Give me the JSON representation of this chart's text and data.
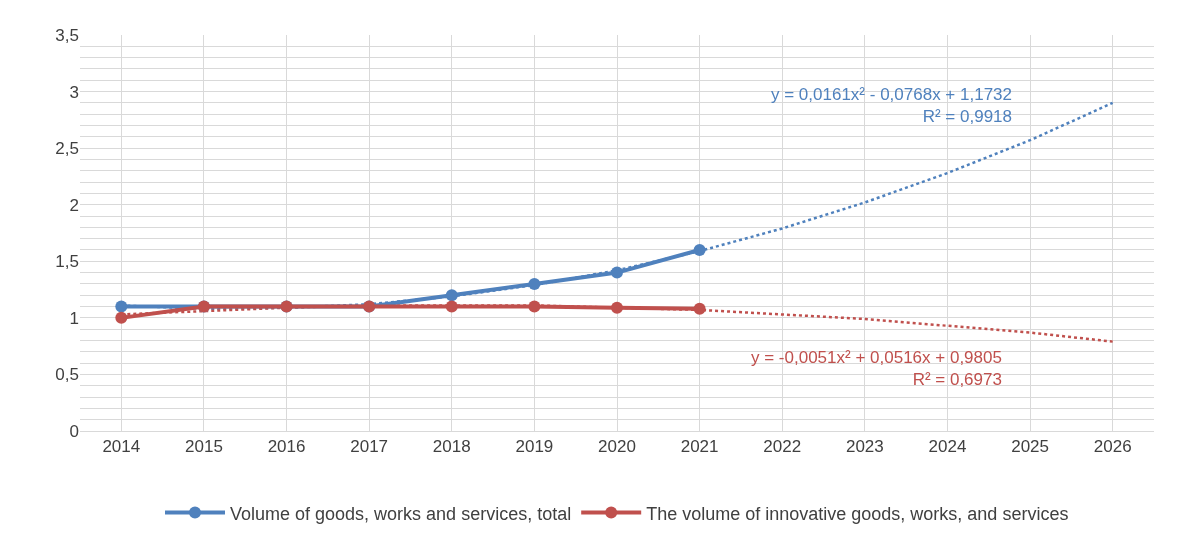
{
  "chart_data": {
    "type": "line",
    "categories": [
      "2014",
      "2015",
      "2016",
      "2017",
      "2018",
      "2019",
      "2020",
      "2021",
      "2022",
      "2023",
      "2024",
      "2025",
      "2026"
    ],
    "series": [
      {
        "name": "Volume of goods, works and services, total",
        "color": "#4f81bd",
        "marker": "circle",
        "line_style": "solid",
        "values": [
          1.1,
          1.1,
          1.1,
          1.1,
          1.2,
          1.3,
          1.4,
          1.6,
          null,
          null,
          null,
          null,
          null
        ]
      },
      {
        "name": "The volume of innovative goods, works, and services",
        "color": "#c0504d",
        "marker": "circle",
        "line_style": "solid",
        "values": [
          1.0,
          1.1,
          1.1,
          1.1,
          1.1,
          1.1,
          1.09,
          1.08,
          null,
          null,
          null,
          null,
          null
        ]
      },
      {
        "type": "line",
        "color": "#4f81bd",
        "marker": "none",
        "line_style": "dotted",
        "values": [
          1.11,
          1.08,
          1.09,
          1.12,
          1.19,
          1.29,
          1.42,
          1.59,
          1.79,
          2.02,
          2.28,
          2.57,
          2.9
        ]
      },
      {
        "type": "line",
        "color": "#c0504d",
        "marker": "none",
        "line_style": "dotted",
        "values": [
          1.03,
          1.06,
          1.09,
          1.11,
          1.11,
          1.11,
          1.09,
          1.07,
          1.03,
          0.99,
          0.93,
          0.87,
          0.79
        ]
      }
    ],
    "annotations": [
      "y = 0,0161x² - 0,0768x + 1,1732\nR² = 0,9918",
      "y = -0,0051x² + 0,0516x + 0,9805\nR² = 0,6973"
    ],
    "ylim": [
      0,
      3.5
    ],
    "yticks": [
      0,
      {
        "value": 0.1,
        "label": null
      },
      {
        "value": 0.2,
        "label": null
      },
      {
        "value": 0.3,
        "label": null
      },
      {
        "value": 0.4,
        "label": null
      },
      {
        "value": 0.5,
        "label": "0,5"
      },
      {
        "value": 0.6,
        "label": null
      },
      {
        "value": 0.7,
        "label": null
      },
      {
        "value": 0.8,
        "label": null
      },
      {
        "value": 0.9,
        "label": null
      },
      1,
      {
        "value": 1.1,
        "label": null
      },
      {
        "value": 1.2,
        "label": null
      },
      {
        "value": 1.3,
        "label": null
      },
      {
        "value": 1.4,
        "label": null
      },
      {
        "value": 1.5,
        "label": "1,5"
      },
      {
        "value": 1.6,
        "label": null
      },
      {
        "value": 1.7,
        "label": null
      },
      {
        "value": 1.8,
        "label": null
      },
      {
        "value": 1.9,
        "label": null
      },
      2,
      {
        "value": 2.1,
        "label": null
      },
      {
        "value": 2.2,
        "label": null
      },
      {
        "value": 2.3,
        "label": null
      },
      {
        "value": 2.4,
        "label": null
      },
      {
        "value": 2.5,
        "label": "2,5"
      },
      {
        "value": 2.6,
        "label": null
      },
      {
        "value": 2.7,
        "label": null
      },
      {
        "value": 2.8,
        "label": null
      },
      {
        "value": 2.9,
        "label": null
      },
      3,
      {
        "value": 3.1,
        "label": null
      },
      {
        "value": 3.2,
        "label": null
      },
      {
        "value": 3.3,
        "label": null
      },
      {
        "value": 3.4,
        "label": null
      },
      {
        "value": 3.5,
        "label": "3,5"
      }
    ],
    "grid": true,
    "legend": "bottom"
  }
}
